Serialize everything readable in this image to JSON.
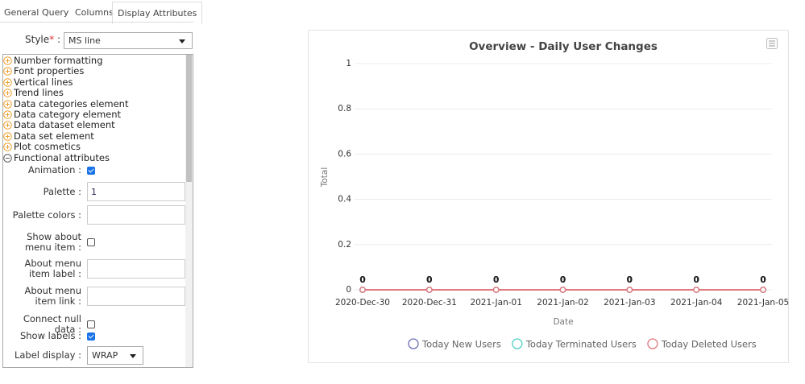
{
  "tabs": [
    "General",
    "Query",
    "Columns",
    "Display Attributes"
  ],
  "style_field": {
    "label": "Style",
    "required_mark": "*",
    "label_suffix": " :",
    "value": "MS line"
  },
  "tree": {
    "collapsed": [
      "Number formatting",
      "Font properties",
      "Vertical lines",
      "Trend lines",
      "Data categories element",
      "Data category element",
      "Data dataset element",
      "Data set element",
      "Plot cosmetics"
    ],
    "expanded": "Functional attributes",
    "fields": [
      {
        "label": "Animation :",
        "control": "checkbox",
        "checked": true
      },
      {
        "label": "Palette :",
        "control": "text",
        "value": "1"
      },
      {
        "label": "Palette colors :",
        "control": "text"
      },
      {
        "label": "Show about menu item :",
        "control": "checkbox",
        "checked": false
      },
      {
        "label": "About menu item label :",
        "control": "text"
      },
      {
        "label": "About menu item link :",
        "control": "text"
      },
      {
        "label": "Connect null data :",
        "control": "checkbox",
        "checked": false
      },
      {
        "label": "Show labels :",
        "control": "checkbox",
        "checked": true
      },
      {
        "label": "Label display :",
        "control": "select",
        "value": "WRAP"
      }
    ]
  },
  "chart_data": {
    "type": "line",
    "title": "Overview - Daily User Changes",
    "x_label": "Date",
    "y_label": "Total",
    "categories": [
      "2020-Dec-30",
      "2020-Dec-31",
      "2021-Jan-01",
      "2021-Jan-02",
      "2021-Jan-03",
      "2021-Jan-04",
      "2021-Jan-05"
    ],
    "series": [
      {
        "name": "Today New Users",
        "color": "#6f6fb8",
        "values": [
          0,
          0,
          0,
          0,
          0,
          0,
          0
        ]
      },
      {
        "name": "Today Terminated Users",
        "color": "#4fcfc4",
        "values": [
          0,
          0,
          0,
          0,
          0,
          0,
          0
        ]
      },
      {
        "name": "Today Deleted Users",
        "color": "#e07a80",
        "values": [
          0,
          0,
          0,
          0,
          0,
          0,
          0
        ]
      }
    ],
    "ylim": [
      0,
      1
    ],
    "yticks": [
      0,
      0.2,
      0.4,
      0.6,
      0.8,
      1
    ],
    "grid": true,
    "legend": "bottom",
    "data_labels": true
  }
}
